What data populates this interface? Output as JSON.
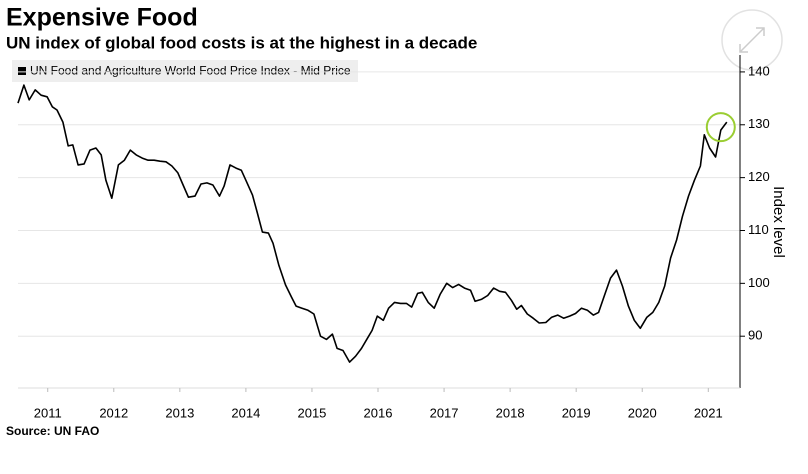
{
  "chart_data": {
    "type": "line",
    "title": "Expensive Food",
    "subtitle": "UN index of global food costs is at the highest in a decade",
    "source": "Source: UN FAO",
    "y_label": "Index level",
    "legend": "top-left",
    "grid": true,
    "x": [
      2010.55,
      2010.64,
      2010.72,
      2010.81,
      2010.9,
      2010.99,
      2011.07,
      2011.14,
      2011.23,
      2011.31,
      2011.38,
      2011.46,
      2011.55,
      2011.64,
      2011.73,
      2011.81,
      2011.88,
      2011.97,
      2012.07,
      2012.16,
      2012.25,
      2012.34,
      2012.43,
      2012.52,
      2012.61,
      2012.7,
      2012.79,
      2012.88,
      2012.97,
      2013.05,
      2013.13,
      2013.23,
      2013.32,
      2013.41,
      2013.5,
      2013.6,
      2013.67,
      2013.76,
      2013.85,
      2013.93,
      2014.0,
      2014.1,
      2014.17,
      2014.25,
      2014.34,
      2014.41,
      2014.5,
      2014.6,
      2014.69,
      2014.76,
      2014.85,
      2014.94,
      2015.03,
      2015.13,
      2015.22,
      2015.31,
      2015.38,
      2015.47,
      2015.57,
      2015.66,
      2015.75,
      2015.84,
      2015.91,
      2015.99,
      2016.08,
      2016.16,
      2016.25,
      2016.34,
      2016.43,
      2016.51,
      2016.6,
      2016.67,
      2016.76,
      2016.85,
      2016.94,
      2017.04,
      2017.13,
      2017.22,
      2017.31,
      2017.4,
      2017.47,
      2017.57,
      2017.66,
      2017.75,
      2017.84,
      2017.93,
      2018.02,
      2018.1,
      2018.17,
      2018.26,
      2018.35,
      2018.44,
      2018.54,
      2018.63,
      2018.72,
      2018.81,
      2018.9,
      2018.99,
      2019.08,
      2019.17,
      2019.26,
      2019.34,
      2019.43,
      2019.52,
      2019.61,
      2019.7,
      2019.79,
      2019.88,
      2019.97,
      2020.07,
      2020.16,
      2020.25,
      2020.34,
      2020.43,
      2020.52,
      2020.61,
      2020.7,
      2020.79,
      2020.88,
      2020.94,
      2021.02,
      2021.11,
      2021.19,
      2021.28
    ],
    "series": [
      {
        "name": "UN Food and Agriculture World Food Price Index - Mid Price",
        "color": "#000000",
        "values": [
          134.1,
          137.5,
          134.7,
          136.6,
          135.6,
          135.3,
          133.4,
          132.8,
          130.5,
          126.0,
          126.2,
          122.4,
          122.6,
          125.2,
          125.6,
          124.3,
          119.5,
          116.1,
          122.4,
          123.3,
          125.2,
          124.3,
          123.7,
          123.3,
          123.3,
          123.1,
          123.0,
          122.2,
          120.9,
          118.6,
          116.3,
          116.5,
          118.8,
          119.0,
          118.6,
          116.5,
          118.4,
          122.4,
          121.8,
          121.4,
          119.5,
          116.7,
          113.5,
          109.7,
          109.5,
          107.6,
          103.4,
          99.7,
          97.4,
          95.7,
          95.3,
          94.9,
          94.2,
          90.0,
          89.4,
          90.4,
          87.7,
          87.3,
          85.1,
          86.2,
          87.7,
          89.6,
          91.1,
          93.8,
          93.0,
          95.3,
          96.4,
          96.2,
          96.2,
          95.5,
          98.1,
          98.3,
          96.4,
          95.3,
          97.9,
          100.0,
          99.2,
          99.8,
          99.1,
          98.7,
          96.6,
          97.0,
          97.7,
          99.1,
          98.5,
          98.3,
          96.8,
          95.1,
          95.8,
          94.2,
          93.4,
          92.5,
          92.6,
          93.6,
          94.0,
          93.4,
          93.8,
          94.3,
          95.3,
          94.9,
          94.0,
          94.5,
          97.8,
          101.0,
          102.5,
          99.5,
          95.7,
          93.0,
          91.5,
          93.6,
          94.5,
          96.4,
          99.5,
          104.8,
          108.2,
          112.7,
          116.5,
          119.5,
          122.2,
          128.1,
          125.6,
          123.9,
          129.0,
          130.5
        ]
      }
    ],
    "xlim": [
      2010.55,
      2021.48
    ],
    "xticks": [
      2011,
      2012,
      2013,
      2014,
      2015,
      2016,
      2017,
      2018,
      2019,
      2020,
      2021
    ],
    "ylim": [
      80.2,
      143.2
    ],
    "yticks": [
      90,
      100,
      110,
      120,
      130,
      140
    ],
    "highlight_color": "#9acd32"
  }
}
